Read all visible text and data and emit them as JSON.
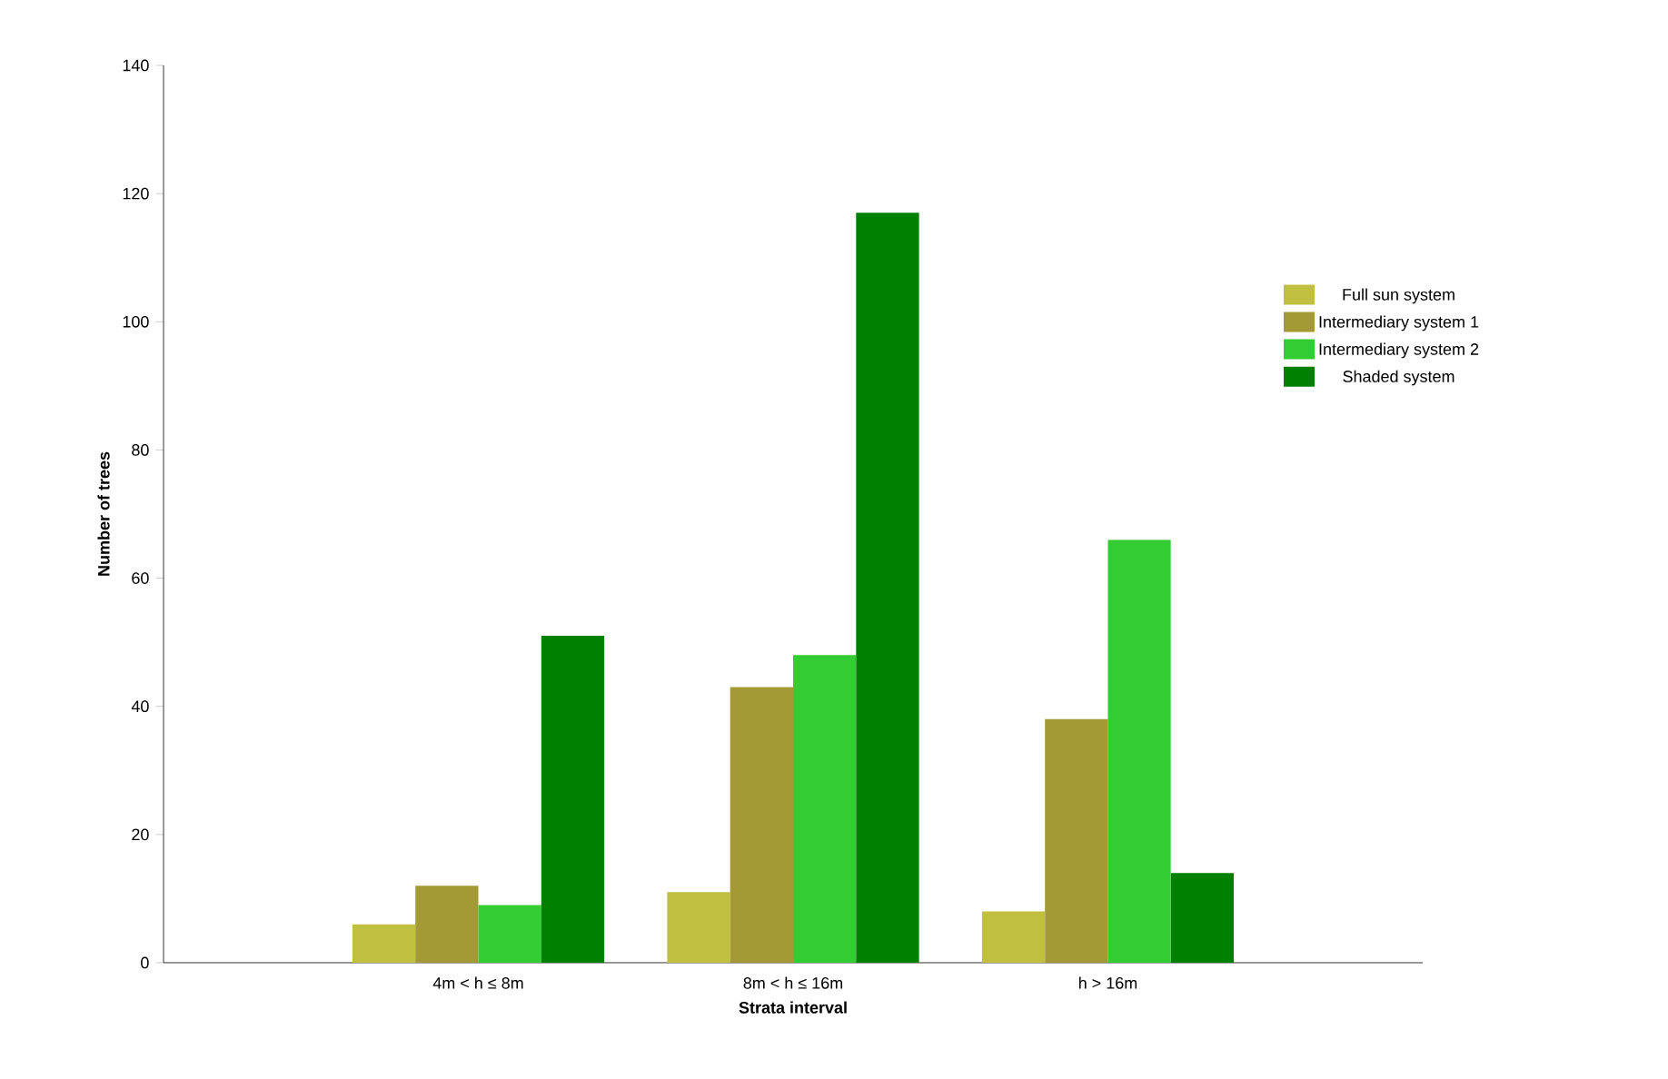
{
  "chart_data": {
    "type": "bar",
    "xlabel": "Strata interval",
    "ylabel": "Number of trees",
    "categories": [
      "4m < h ≤ 8m",
      "8m < h ≤ 16m",
      "h > 16m"
    ],
    "series": [
      {
        "name": "Full sun system",
        "color": "#c0bf40",
        "values": [
          6,
          11,
          8
        ]
      },
      {
        "name": "Intermediary system 1",
        "color": "#a39a35",
        "values": [
          12,
          43,
          38
        ]
      },
      {
        "name": "Intermediary system 2",
        "color": "#33cc33",
        "values": [
          9,
          48,
          66
        ]
      },
      {
        "name": "Shaded system",
        "color": "#008000",
        "values": [
          51,
          117,
          14
        ]
      }
    ],
    "ylim": [
      0,
      140
    ],
    "yticks": [
      0,
      20,
      40,
      60,
      80,
      100,
      120,
      140
    ],
    "grid": false,
    "legend": "right"
  }
}
